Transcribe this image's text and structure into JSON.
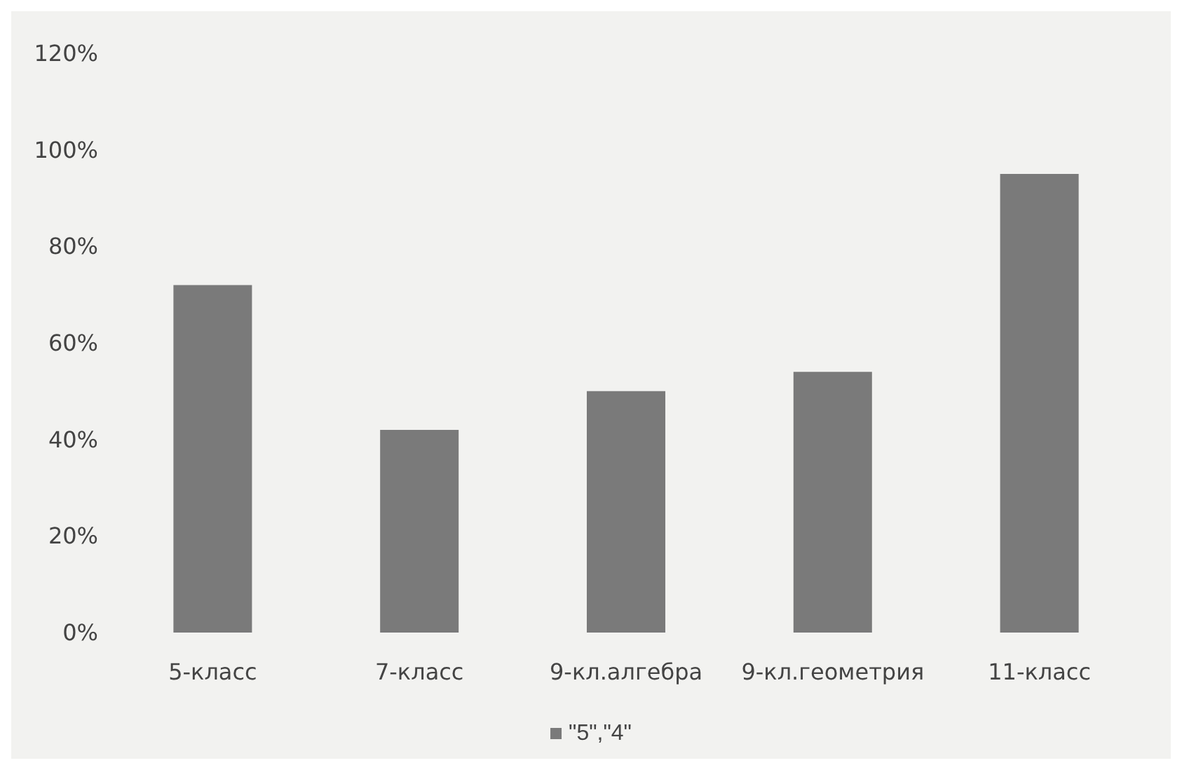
{
  "chart_data": {
    "type": "bar",
    "categories": [
      "5-класс",
      "7-класс",
      "9-кл.алгебра",
      "9-кл.геометрия",
      "11-класс"
    ],
    "series": [
      {
        "name": "\"5\",\"4\"",
        "color": "#7a7a7a",
        "values": [
          72,
          42,
          50,
          54,
          95
        ]
      }
    ],
    "ylim": [
      0,
      120
    ],
    "yticks": [
      {
        "value": 0,
        "label": "0%"
      },
      {
        "value": 20,
        "label": "20%"
      },
      {
        "value": 40,
        "label": "40%"
      },
      {
        "value": 60,
        "label": "60%"
      },
      {
        "value": 80,
        "label": "80%"
      },
      {
        "value": 100,
        "label": "100%"
      },
      {
        "value": 120,
        "label": "120%"
      }
    ],
    "grid": false,
    "legend": "bottom"
  }
}
